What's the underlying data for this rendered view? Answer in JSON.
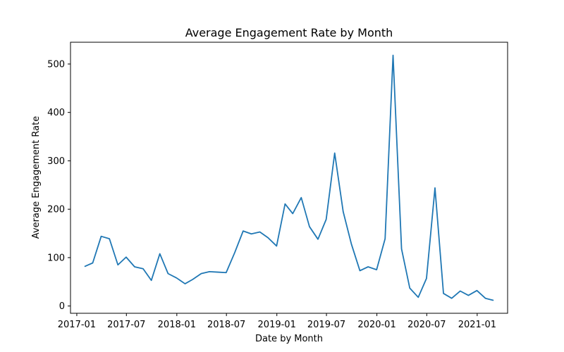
{
  "chart_data": {
    "type": "line",
    "title": "Average Engagement Rate by Month",
    "xlabel": "Date by Month",
    "ylabel": "Average Engagement Rate",
    "xlim": [
      "2016-12-09",
      "2021-04-22"
    ],
    "ylim": [
      -15,
      545
    ],
    "x_ticks": [
      {
        "date": "2017-01-01",
        "label": "2017-01"
      },
      {
        "date": "2017-07-01",
        "label": "2017-07"
      },
      {
        "date": "2018-01-01",
        "label": "2018-01"
      },
      {
        "date": "2018-07-01",
        "label": "2018-07"
      },
      {
        "date": "2019-01-01",
        "label": "2019-01"
      },
      {
        "date": "2019-07-01",
        "label": "2019-07"
      },
      {
        "date": "2020-01-01",
        "label": "2020-01"
      },
      {
        "date": "2020-07-01",
        "label": "2020-07"
      },
      {
        "date": "2021-01-01",
        "label": "2021-01"
      }
    ],
    "y_ticks": [
      0,
      100,
      200,
      300,
      400,
      500
    ],
    "grid": false,
    "colors": {
      "line": "#1f77b4"
    },
    "series": [
      {
        "x": [
          "2017-01-31",
          "2017-02-28",
          "2017-03-31",
          "2017-04-30",
          "2017-05-31",
          "2017-06-30",
          "2017-07-31",
          "2017-08-31",
          "2017-09-30",
          "2017-10-31",
          "2017-11-30",
          "2017-12-31",
          "2018-01-31",
          "2018-02-28",
          "2018-03-31",
          "2018-04-30",
          "2018-05-31",
          "2018-06-30",
          "2018-07-31",
          "2018-08-31",
          "2018-09-30",
          "2018-10-31",
          "2018-11-30",
          "2018-12-31",
          "2019-01-31",
          "2019-02-28",
          "2019-03-31",
          "2019-04-30",
          "2019-05-31",
          "2019-06-30",
          "2019-07-31",
          "2019-08-31",
          "2019-09-30",
          "2019-10-31",
          "2019-11-30",
          "2019-12-31",
          "2020-01-31",
          "2020-02-29",
          "2020-03-31",
          "2020-04-30",
          "2020-05-31",
          "2020-06-30",
          "2020-07-31",
          "2020-08-31",
          "2020-09-30",
          "2020-10-31",
          "2020-11-30",
          "2020-12-31",
          "2021-01-31",
          "2021-02-28"
        ],
        "y": [
          82,
          89,
          144,
          139,
          85,
          101,
          81,
          77,
          53,
          108,
          67,
          58,
          46,
          55,
          67,
          71,
          70,
          69,
          110,
          155,
          149,
          153,
          141,
          124,
          211,
          191,
          224,
          164,
          138,
          179,
          316,
          195,
          128,
          73,
          81,
          75,
          139,
          518,
          118,
          37,
          18,
          57,
          244,
          26,
          16,
          31,
          22,
          32,
          16,
          12
        ]
      }
    ]
  }
}
